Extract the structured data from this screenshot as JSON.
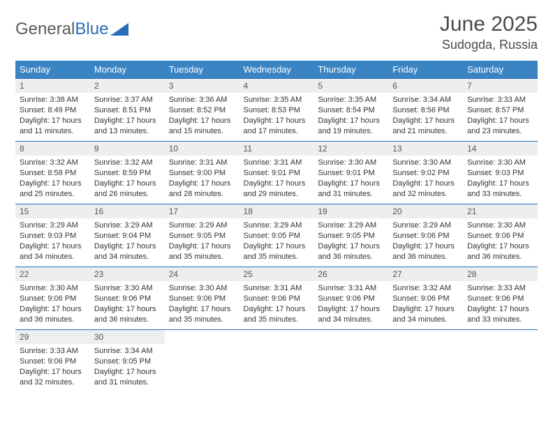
{
  "brand": {
    "part1": "General",
    "part2": "Blue"
  },
  "title": "June 2025",
  "location": "Sudogda, Russia",
  "colors": {
    "header_bg": "#3b84c4",
    "border": "#2a6db8",
    "daynum_bg": "#eceeef",
    "text": "#333333",
    "title_text": "#4a4a4a"
  },
  "weekdays": [
    "Sunday",
    "Monday",
    "Tuesday",
    "Wednesday",
    "Thursday",
    "Friday",
    "Saturday"
  ],
  "labels": {
    "sunrise": "Sunrise:",
    "sunset": "Sunset:",
    "daylight": "Daylight:"
  },
  "days": [
    {
      "n": "1",
      "sunrise": "3:38 AM",
      "sunset": "8:49 PM",
      "daylight": "17 hours and 11 minutes."
    },
    {
      "n": "2",
      "sunrise": "3:37 AM",
      "sunset": "8:51 PM",
      "daylight": "17 hours and 13 minutes."
    },
    {
      "n": "3",
      "sunrise": "3:36 AM",
      "sunset": "8:52 PM",
      "daylight": "17 hours and 15 minutes."
    },
    {
      "n": "4",
      "sunrise": "3:35 AM",
      "sunset": "8:53 PM",
      "daylight": "17 hours and 17 minutes."
    },
    {
      "n": "5",
      "sunrise": "3:35 AM",
      "sunset": "8:54 PM",
      "daylight": "17 hours and 19 minutes."
    },
    {
      "n": "6",
      "sunrise": "3:34 AM",
      "sunset": "8:56 PM",
      "daylight": "17 hours and 21 minutes."
    },
    {
      "n": "7",
      "sunrise": "3:33 AM",
      "sunset": "8:57 PM",
      "daylight": "17 hours and 23 minutes."
    },
    {
      "n": "8",
      "sunrise": "3:32 AM",
      "sunset": "8:58 PM",
      "daylight": "17 hours and 25 minutes."
    },
    {
      "n": "9",
      "sunrise": "3:32 AM",
      "sunset": "8:59 PM",
      "daylight": "17 hours and 26 minutes."
    },
    {
      "n": "10",
      "sunrise": "3:31 AM",
      "sunset": "9:00 PM",
      "daylight": "17 hours and 28 minutes."
    },
    {
      "n": "11",
      "sunrise": "3:31 AM",
      "sunset": "9:01 PM",
      "daylight": "17 hours and 29 minutes."
    },
    {
      "n": "12",
      "sunrise": "3:30 AM",
      "sunset": "9:01 PM",
      "daylight": "17 hours and 31 minutes."
    },
    {
      "n": "13",
      "sunrise": "3:30 AM",
      "sunset": "9:02 PM",
      "daylight": "17 hours and 32 minutes."
    },
    {
      "n": "14",
      "sunrise": "3:30 AM",
      "sunset": "9:03 PM",
      "daylight": "17 hours and 33 minutes."
    },
    {
      "n": "15",
      "sunrise": "3:29 AM",
      "sunset": "9:03 PM",
      "daylight": "17 hours and 34 minutes."
    },
    {
      "n": "16",
      "sunrise": "3:29 AM",
      "sunset": "9:04 PM",
      "daylight": "17 hours and 34 minutes."
    },
    {
      "n": "17",
      "sunrise": "3:29 AM",
      "sunset": "9:05 PM",
      "daylight": "17 hours and 35 minutes."
    },
    {
      "n": "18",
      "sunrise": "3:29 AM",
      "sunset": "9:05 PM",
      "daylight": "17 hours and 35 minutes."
    },
    {
      "n": "19",
      "sunrise": "3:29 AM",
      "sunset": "9:05 PM",
      "daylight": "17 hours and 36 minutes."
    },
    {
      "n": "20",
      "sunrise": "3:29 AM",
      "sunset": "9:06 PM",
      "daylight": "17 hours and 36 minutes."
    },
    {
      "n": "21",
      "sunrise": "3:30 AM",
      "sunset": "9:06 PM",
      "daylight": "17 hours and 36 minutes."
    },
    {
      "n": "22",
      "sunrise": "3:30 AM",
      "sunset": "9:06 PM",
      "daylight": "17 hours and 36 minutes."
    },
    {
      "n": "23",
      "sunrise": "3:30 AM",
      "sunset": "9:06 PM",
      "daylight": "17 hours and 36 minutes."
    },
    {
      "n": "24",
      "sunrise": "3:30 AM",
      "sunset": "9:06 PM",
      "daylight": "17 hours and 35 minutes."
    },
    {
      "n": "25",
      "sunrise": "3:31 AM",
      "sunset": "9:06 PM",
      "daylight": "17 hours and 35 minutes."
    },
    {
      "n": "26",
      "sunrise": "3:31 AM",
      "sunset": "9:06 PM",
      "daylight": "17 hours and 34 minutes."
    },
    {
      "n": "27",
      "sunrise": "3:32 AM",
      "sunset": "9:06 PM",
      "daylight": "17 hours and 34 minutes."
    },
    {
      "n": "28",
      "sunrise": "3:33 AM",
      "sunset": "9:06 PM",
      "daylight": "17 hours and 33 minutes."
    },
    {
      "n": "29",
      "sunrise": "3:33 AM",
      "sunset": "9:06 PM",
      "daylight": "17 hours and 32 minutes."
    },
    {
      "n": "30",
      "sunrise": "3:34 AM",
      "sunset": "9:05 PM",
      "daylight": "17 hours and 31 minutes."
    }
  ]
}
